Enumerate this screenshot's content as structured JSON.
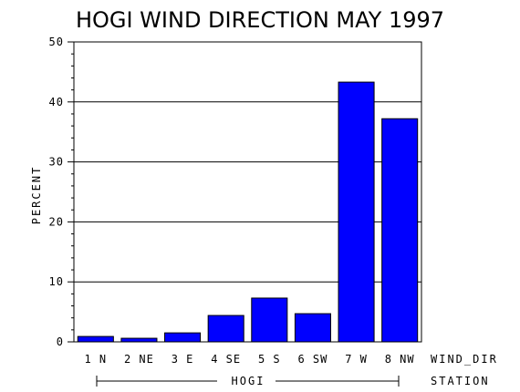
{
  "chart_data": {
    "type": "bar",
    "title": "HOGI WIND DIRECTION MAY 1997",
    "ylabel": "PERCENT",
    "xlabel": "WIND_DIR",
    "group_label": "HOGI",
    "group_axis_label": "STATION",
    "categories": [
      "1 N",
      "2 NE",
      "3 E",
      "4 SE",
      "5 S",
      "6 SW",
      "7 W",
      "8 NW"
    ],
    "values": [
      0.9,
      0.6,
      1.5,
      4.4,
      7.3,
      4.7,
      43.3,
      37.2
    ],
    "ylim": [
      0,
      50
    ],
    "yticks": [
      0,
      10,
      20,
      30,
      40,
      50
    ],
    "grid": true,
    "bar_color": "#0000ff"
  }
}
